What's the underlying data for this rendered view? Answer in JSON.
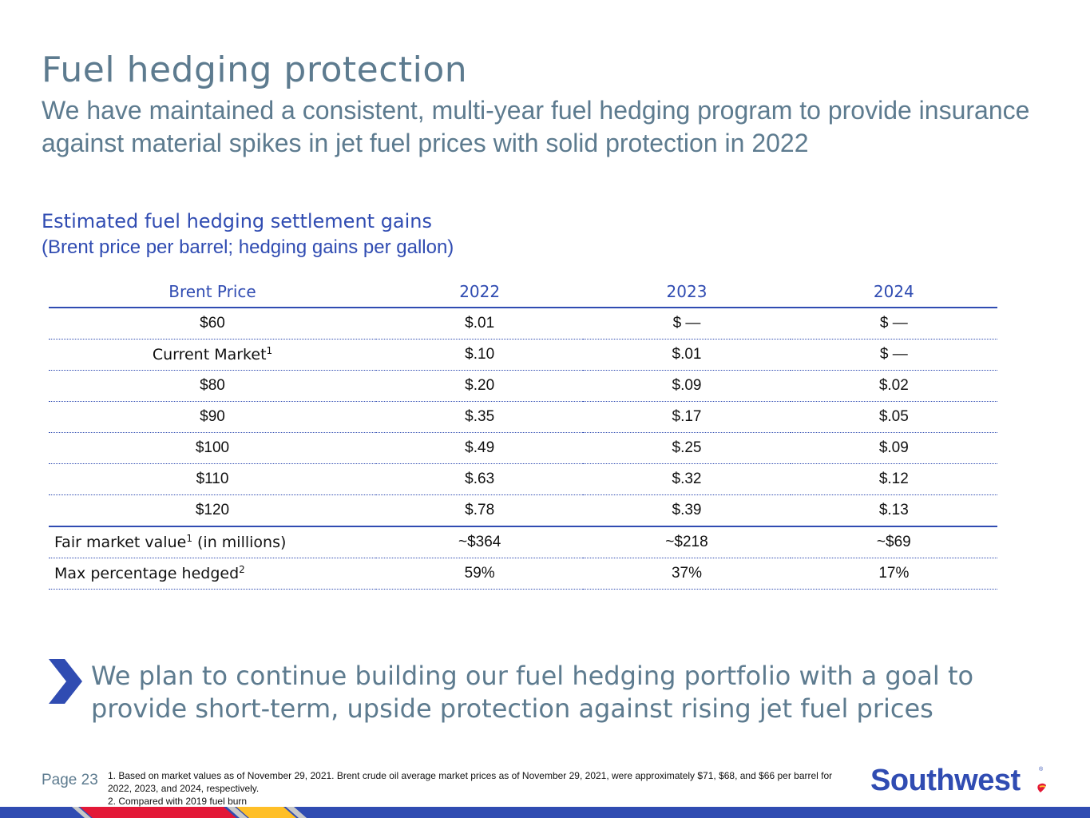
{
  "header": {
    "title": "Fuel hedging protection",
    "subtitle": "We have maintained a consistent, multi-year fuel hedging program to provide insurance against material spikes in jet fuel prices with solid protection in 2022"
  },
  "section": {
    "title": "Estimated fuel hedging settlement gains",
    "subtitle": "(Brent price per barrel; hedging gains per gallon)"
  },
  "table": {
    "headers": [
      "Brent Price",
      "2022",
      "2023",
      "2024"
    ],
    "rows": [
      {
        "label": "$60",
        "sup": "",
        "values": [
          "$.01",
          "$ —",
          "$ —"
        ]
      },
      {
        "label": "Current Market",
        "sup": "1",
        "values": [
          "$.10",
          "$.01",
          "$ —"
        ]
      },
      {
        "label": "$80",
        "sup": "",
        "values": [
          "$.20",
          "$.09",
          "$.02"
        ]
      },
      {
        "label": "$90",
        "sup": "",
        "values": [
          "$.35",
          "$.17",
          "$.05"
        ]
      },
      {
        "label": "$100",
        "sup": "",
        "values": [
          "$.49",
          "$.25",
          "$.09"
        ]
      },
      {
        "label": "$110",
        "sup": "",
        "values": [
          "$.63",
          "$.32",
          "$.12"
        ]
      },
      {
        "label": "$120",
        "sup": "",
        "values": [
          "$.78",
          "$.39",
          "$.13"
        ]
      }
    ],
    "summary_rows": [
      {
        "label": "Fair market value",
        "sup": "1",
        "suffix": " (in millions)",
        "values": [
          "~$364",
          "~$218",
          "~$69"
        ]
      },
      {
        "label": "Max percentage hedged",
        "sup": "2",
        "suffix": "",
        "values": [
          "59%",
          "37%",
          "17%"
        ]
      }
    ]
  },
  "callout": {
    "text": "We plan to continue building our fuel hedging portfolio with a goal to provide short-term, upside protection against rising jet fuel prices",
    "icon": "chevron-right-icon"
  },
  "footer": {
    "page": "Page 23",
    "footnotes": [
      "1. Based on market values as of November 29, 2021. Brent crude oil average market prices as of November 29, 2021, were approximately $71, $68, and $66 per barrel for 2022, 2023, and 2024, respectively.",
      "2. Compared with 2019 fuel burn"
    ],
    "logo_text": "Southwest"
  },
  "colors": {
    "title": "#5d7b8f",
    "accent_blue": "#304cb2",
    "red": "#e31837",
    "yellow": "#ffbf27"
  }
}
